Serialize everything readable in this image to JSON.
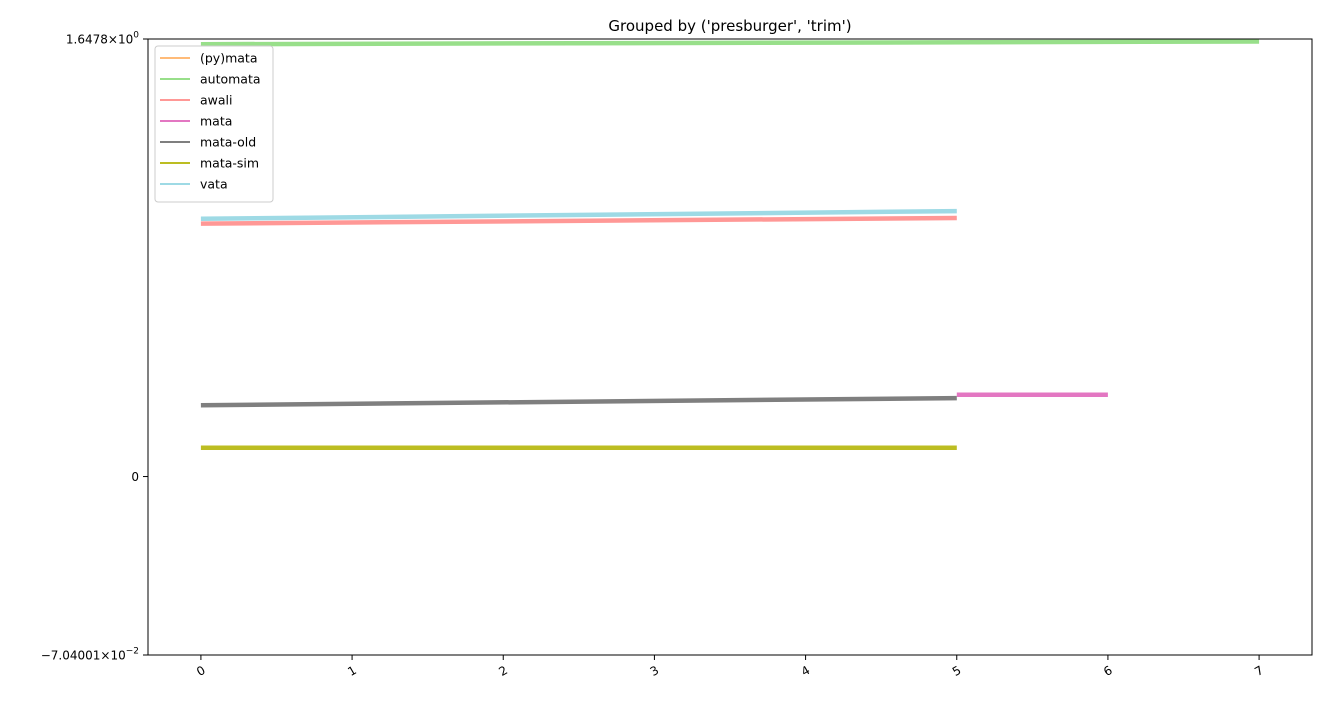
{
  "chart_data": {
    "type": "line",
    "title": "Grouped by ('presburger', 'trim')",
    "xlabel": "",
    "ylabel": "",
    "xlim": [
      -0.35,
      7.35
    ],
    "ylim": [
      -0.0704001,
      1.6478
    ],
    "y_scale": "symlog",
    "xticks": [
      "0",
      "1",
      "2",
      "3",
      "4",
      "5",
      "6",
      "7"
    ],
    "yticks": [
      {
        "value": 1.6478,
        "mantissa": "1.6478",
        "exp": "0"
      },
      {
        "value": 0,
        "mantissa": "0",
        "exp": ""
      },
      {
        "value": -0.0704001,
        "mantissa": "−7.04001",
        "exp": "−2"
      }
    ],
    "grid": false,
    "legend_position": "upper-left",
    "series": [
      {
        "name": "(py)mata",
        "color": "#ffbb78",
        "x": [],
        "y": []
      },
      {
        "name": "automata",
        "color": "#98df8a",
        "x": [
          0,
          7
        ],
        "y": [
          1.551,
          1.601
        ]
      },
      {
        "name": "awali",
        "color": "#ff9896",
        "x": [
          0,
          5
        ],
        "y": [
          0.182,
          0.195
        ]
      },
      {
        "name": "mata",
        "color": "#e377c2",
        "x": [
          5,
          6
        ],
        "y": [
          0.016,
          0.016
        ]
      },
      {
        "name": "mata-old",
        "color": "#7f7f7f",
        "x": [
          0,
          5
        ],
        "y": [
          0.013,
          0.015
        ]
      },
      {
        "name": "mata-sim",
        "color": "#bcbd22",
        "x": [
          0,
          5
        ],
        "y": [
          0.004,
          0.004
        ]
      },
      {
        "name": "vata",
        "color": "#9edae5",
        "x": [
          0,
          5
        ],
        "y": [
          0.193,
          0.212
        ]
      }
    ]
  }
}
